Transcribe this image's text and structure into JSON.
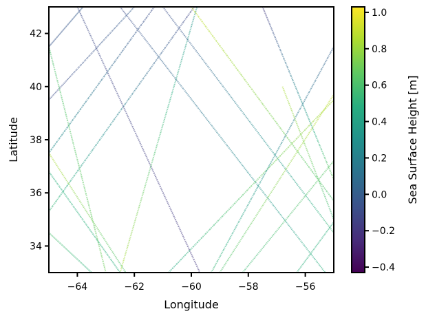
{
  "chart_data": {
    "type": "scatter",
    "title": "",
    "xlabel": "Longitude",
    "ylabel": "Latitude",
    "xlim": [
      -65,
      -55
    ],
    "ylim": [
      33,
      43
    ],
    "xticks": [
      -64,
      -62,
      -60,
      -58,
      -56
    ],
    "xtick_labels": [
      "−64",
      "−62",
      "−60",
      "−58",
      "−56"
    ],
    "yticks": [
      34,
      36,
      38,
      40,
      42
    ],
    "ytick_labels": [
      "34",
      "36",
      "38",
      "40",
      "42"
    ],
    "grid": false,
    "colorbar": {
      "label": "Sea Surface Height [m]",
      "colormap": "viridis",
      "range": [
        -0.43,
        1.03
      ],
      "ticks": [
        -0.4,
        -0.2,
        0.0,
        0.2,
        0.4,
        0.6,
        0.8,
        1.0
      ],
      "tick_labels": [
        "−0.4",
        "−0.2",
        "0.0",
        "0.2",
        "0.4",
        "0.6",
        "0.8",
        "1.0"
      ]
    },
    "series": [
      {
        "points": [
          [
            -65.0,
            41.5
          ],
          [
            -63.8,
            43.0
          ]
        ],
        "value_start": -0.05,
        "value_end": 0.0
      },
      {
        "points": [
          [
            -65.0,
            39.5
          ],
          [
            -62.0,
            43.0
          ]
        ],
        "value_start": -0.1,
        "value_end": 0.0
      },
      {
        "points": [
          [
            -65.0,
            37.5
          ],
          [
            -61.3,
            43.0
          ]
        ],
        "value_start": 0.3,
        "value_end": -0.1
      },
      {
        "points": [
          [
            -65.0,
            35.3
          ],
          [
            -59.9,
            43.0
          ]
        ],
        "value_start": 0.55,
        "value_end": -0.15
      },
      {
        "points": [
          [
            -62.5,
            33.0
          ],
          [
            -59.8,
            43.0
          ]
        ],
        "value_start": 0.85,
        "value_end": 0.3
      },
      {
        "points": [
          [
            -64.0,
            43.0
          ],
          [
            -59.7,
            33.0
          ]
        ],
        "value_start": -0.1,
        "value_end": -0.2
      },
      {
        "points": [
          [
            -65.0,
            41.5
          ],
          [
            -63.0,
            33.0
          ]
        ],
        "value_start": 0.6,
        "value_end": 0.7
      },
      {
        "points": [
          [
            -65.0,
            37.5
          ],
          [
            -62.3,
            33.0
          ]
        ],
        "value_start": 0.85,
        "value_end": 0.6
      },
      {
        "points": [
          [
            -65.0,
            36.8
          ],
          [
            -62.5,
            33.0
          ]
        ],
        "value_start": 0.5,
        "value_end": 0.5
      },
      {
        "points": [
          [
            -65.0,
            34.5
          ],
          [
            -63.5,
            33.0
          ]
        ],
        "value_start": 0.6,
        "value_end": 0.5
      },
      {
        "points": [
          [
            -62.5,
            43.0
          ],
          [
            -55.3,
            33.0
          ]
        ],
        "value_start": -0.1,
        "value_end": 0.5
      },
      {
        "points": [
          [
            -61.0,
            43.0
          ],
          [
            -55.0,
            34.5
          ]
        ],
        "value_start": -0.1,
        "value_end": 0.55
      },
      {
        "points": [
          [
            -60.0,
            43.0
          ],
          [
            -55.0,
            35.7
          ]
        ],
        "value_start": 0.9,
        "value_end": 0.6
      },
      {
        "points": [
          [
            -57.5,
            43.0
          ],
          [
            -55.0,
            36.5
          ]
        ],
        "value_start": -0.2,
        "value_end": 0.7
      },
      {
        "points": [
          [
            -60.8,
            33.0
          ],
          [
            -55.0,
            39.5
          ]
        ],
        "value_start": 0.45,
        "value_end": 0.85
      },
      {
        "points": [
          [
            -59.3,
            33.0
          ],
          [
            -55.0,
            41.5
          ]
        ],
        "value_start": 0.55,
        "value_end": 0.0
      },
      {
        "points": [
          [
            -59.0,
            33.0
          ],
          [
            -55.0,
            39.7
          ]
        ],
        "value_start": 0.6,
        "value_end": 0.9
      },
      {
        "points": [
          [
            -58.2,
            33.0
          ],
          [
            -55.0,
            37.2
          ]
        ],
        "value_start": 0.55,
        "value_end": 0.65
      },
      {
        "points": [
          [
            -56.3,
            33.0
          ],
          [
            -55.0,
            34.9
          ]
        ],
        "value_start": 0.5,
        "value_end": 0.5
      },
      {
        "points": [
          [
            -56.8,
            40.0
          ],
          [
            -55.0,
            35.0
          ]
        ],
        "value_start": 0.85,
        "value_end": 0.55
      }
    ]
  }
}
